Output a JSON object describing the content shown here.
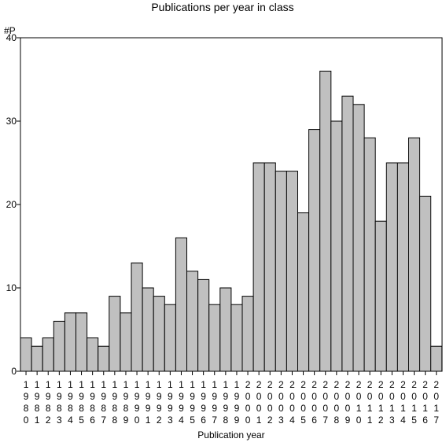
{
  "chart_data": {
    "type": "bar",
    "title": "Publications per year in class",
    "xlabel": "Publication year",
    "ylabel": "#P",
    "ylim": [
      0,
      40
    ],
    "yticks": [
      0,
      10,
      20,
      30,
      40
    ],
    "grid": false,
    "categories": [
      "1980",
      "1981",
      "1982",
      "1983",
      "1984",
      "1985",
      "1986",
      "1987",
      "1988",
      "1989",
      "1990",
      "1991",
      "1992",
      "1993",
      "1994",
      "1995",
      "1996",
      "1997",
      "1998",
      "1999",
      "2000",
      "2001",
      "2002",
      "2003",
      "2004",
      "2005",
      "2006",
      "2007",
      "2008",
      "2009",
      "2010",
      "2011",
      "2012",
      "2013",
      "2014",
      "2015",
      "2016",
      "2017"
    ],
    "values": [
      4,
      3,
      4,
      6,
      7,
      7,
      4,
      3,
      9,
      7,
      13,
      10,
      9,
      8,
      16,
      12,
      11,
      8,
      10,
      8,
      9,
      25,
      25,
      24,
      24,
      19,
      29,
      36,
      30,
      33,
      32,
      28,
      18,
      25,
      25,
      28,
      21,
      3
    ],
    "bar_color": "#c0c0c0",
    "edge_color": "#000000"
  }
}
